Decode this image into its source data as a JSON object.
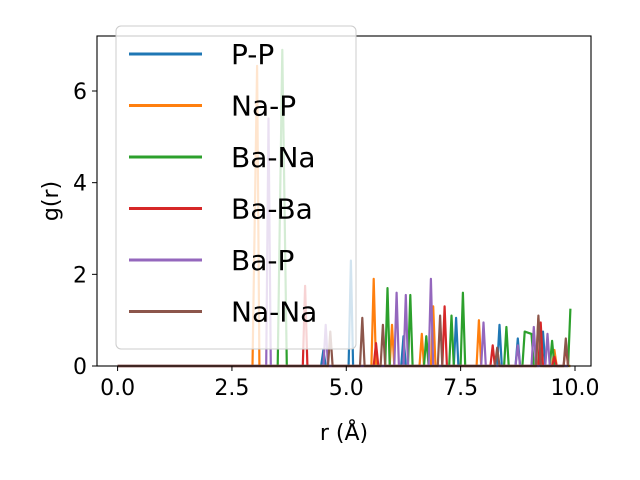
{
  "chart_data": {
    "type": "line",
    "title": "",
    "xlabel": "r (Å)",
    "ylabel": "g(r)",
    "xlim": [
      -0.45,
      10.35
    ],
    "ylim": [
      0,
      7.2
    ],
    "xticks": [
      0.0,
      2.5,
      5.0,
      7.5,
      10.0
    ],
    "xtick_labels": [
      "0.0",
      "2.5",
      "5.0",
      "7.5",
      "10.0"
    ],
    "yticks": [
      0,
      2,
      4,
      6
    ],
    "ytick_labels": [
      "0",
      "2",
      "4",
      "6"
    ],
    "legend_position": "upper left",
    "grid": false,
    "series": [
      {
        "name": "P-P",
        "color": "#1f77b4",
        "points": [
          [
            0.0,
            0
          ],
          [
            4.45,
            0
          ],
          [
            4.5,
            0.35
          ],
          [
            4.55,
            0
          ],
          [
            5.05,
            0
          ],
          [
            5.1,
            2.3
          ],
          [
            5.15,
            0
          ],
          [
            6.2,
            0
          ],
          [
            6.25,
            0.65
          ],
          [
            6.3,
            0
          ],
          [
            7.35,
            0
          ],
          [
            7.4,
            1.05
          ],
          [
            7.45,
            0
          ],
          [
            8.3,
            0
          ],
          [
            8.35,
            0.9
          ],
          [
            8.4,
            0
          ],
          [
            8.7,
            0
          ],
          [
            8.75,
            0.6
          ],
          [
            8.8,
            0
          ],
          [
            9.25,
            0
          ],
          [
            9.3,
            0.75
          ],
          [
            9.35,
            0
          ],
          [
            9.9,
            0
          ]
        ]
      },
      {
        "name": "Na-P",
        "color": "#ff7f0e",
        "points": [
          [
            0.0,
            0
          ],
          [
            2.95,
            0
          ],
          [
            3.05,
            6.55
          ],
          [
            3.1,
            0
          ],
          [
            5.55,
            0
          ],
          [
            5.6,
            1.9
          ],
          [
            5.65,
            0
          ],
          [
            5.95,
            0
          ],
          [
            6.0,
            0.9
          ],
          [
            6.05,
            0
          ],
          [
            6.6,
            0
          ],
          [
            6.65,
            0.7
          ],
          [
            6.7,
            0
          ],
          [
            6.85,
            0
          ],
          [
            6.9,
            1.3
          ],
          [
            6.95,
            0
          ],
          [
            7.85,
            0
          ],
          [
            7.9,
            1.0
          ],
          [
            7.95,
            0
          ],
          [
            9.15,
            0
          ],
          [
            9.2,
            1.05
          ],
          [
            9.25,
            0
          ],
          [
            9.5,
            0
          ],
          [
            9.55,
            0.35
          ],
          [
            9.6,
            0
          ],
          [
            9.9,
            0
          ]
        ]
      },
      {
        "name": "Ba-Na",
        "color": "#2ca02c",
        "points": [
          [
            0.0,
            0
          ],
          [
            3.5,
            0
          ],
          [
            3.6,
            6.9
          ],
          [
            3.7,
            0
          ],
          [
            5.85,
            0
          ],
          [
            5.9,
            1.7
          ],
          [
            5.95,
            0
          ],
          [
            6.35,
            0
          ],
          [
            6.4,
            1.55
          ],
          [
            6.45,
            0
          ],
          [
            6.7,
            0
          ],
          [
            6.75,
            0.65
          ],
          [
            6.8,
            0
          ],
          [
            7.25,
            0
          ],
          [
            7.3,
            1.1
          ],
          [
            7.35,
            0
          ],
          [
            7.5,
            0
          ],
          [
            7.55,
            1.6
          ],
          [
            7.6,
            0
          ],
          [
            8.45,
            0
          ],
          [
            8.5,
            0.85
          ],
          [
            8.55,
            0
          ],
          [
            8.85,
            0
          ],
          [
            8.9,
            0.75
          ],
          [
            9.05,
            0.7
          ],
          [
            9.1,
            0
          ],
          [
            9.45,
            0
          ],
          [
            9.5,
            0.55
          ],
          [
            9.55,
            0
          ],
          [
            9.85,
            0
          ],
          [
            9.9,
            1.25
          ]
        ]
      },
      {
        "name": "Ba-Ba",
        "color": "#d62728",
        "points": [
          [
            0.0,
            0
          ],
          [
            4.05,
            0
          ],
          [
            4.1,
            1.75
          ],
          [
            4.15,
            0
          ],
          [
            5.6,
            0
          ],
          [
            5.65,
            0.5
          ],
          [
            5.7,
            0
          ],
          [
            7.1,
            0
          ],
          [
            7.15,
            1.3
          ],
          [
            7.2,
            0
          ],
          [
            8.15,
            0
          ],
          [
            8.2,
            0.45
          ],
          [
            8.25,
            0
          ],
          [
            9.2,
            0
          ],
          [
            9.25,
            0.95
          ],
          [
            9.3,
            0
          ],
          [
            9.5,
            0
          ],
          [
            9.55,
            0.2
          ],
          [
            9.6,
            0
          ],
          [
            9.75,
            0
          ],
          [
            9.8,
            0.45
          ],
          [
            9.85,
            0
          ]
        ]
      },
      {
        "name": "Ba-P",
        "color": "#9467bd",
        "points": [
          [
            0.0,
            0
          ],
          [
            3.25,
            0
          ],
          [
            3.3,
            5.4
          ],
          [
            3.35,
            0
          ],
          [
            4.5,
            0
          ],
          [
            4.55,
            0.9
          ],
          [
            4.6,
            0
          ],
          [
            6.05,
            0
          ],
          [
            6.1,
            1.6
          ],
          [
            6.15,
            0
          ],
          [
            6.25,
            0
          ],
          [
            6.3,
            1.55
          ],
          [
            6.35,
            0
          ],
          [
            6.8,
            0
          ],
          [
            6.85,
            1.9
          ],
          [
            6.9,
            0
          ],
          [
            7.95,
            0
          ],
          [
            8.0,
            0.95
          ],
          [
            8.05,
            0
          ],
          [
            8.7,
            0
          ],
          [
            8.75,
            0.45
          ],
          [
            8.8,
            0
          ],
          [
            9.05,
            0
          ],
          [
            9.1,
            0.85
          ],
          [
            9.15,
            0
          ],
          [
            9.35,
            0
          ],
          [
            9.4,
            0.7
          ],
          [
            9.45,
            0
          ],
          [
            9.85,
            0
          ]
        ]
      },
      {
        "name": "Na-Na",
        "color": "#8c564b",
        "points": [
          [
            0.0,
            0
          ],
          [
            4.6,
            0
          ],
          [
            4.65,
            0.75
          ],
          [
            4.7,
            0
          ],
          [
            5.3,
            0
          ],
          [
            5.35,
            1.05
          ],
          [
            5.4,
            0
          ],
          [
            5.75,
            0
          ],
          [
            5.8,
            0.9
          ],
          [
            5.85,
            0
          ],
          [
            7.0,
            0
          ],
          [
            7.05,
            1.1
          ],
          [
            7.1,
            0
          ],
          [
            8.25,
            0
          ],
          [
            8.3,
            0.4
          ],
          [
            8.35,
            0
          ],
          [
            9.15,
            0
          ],
          [
            9.2,
            1.1
          ],
          [
            9.25,
            0
          ],
          [
            9.75,
            0
          ],
          [
            9.8,
            0.6
          ],
          [
            9.85,
            0
          ]
        ]
      }
    ]
  }
}
